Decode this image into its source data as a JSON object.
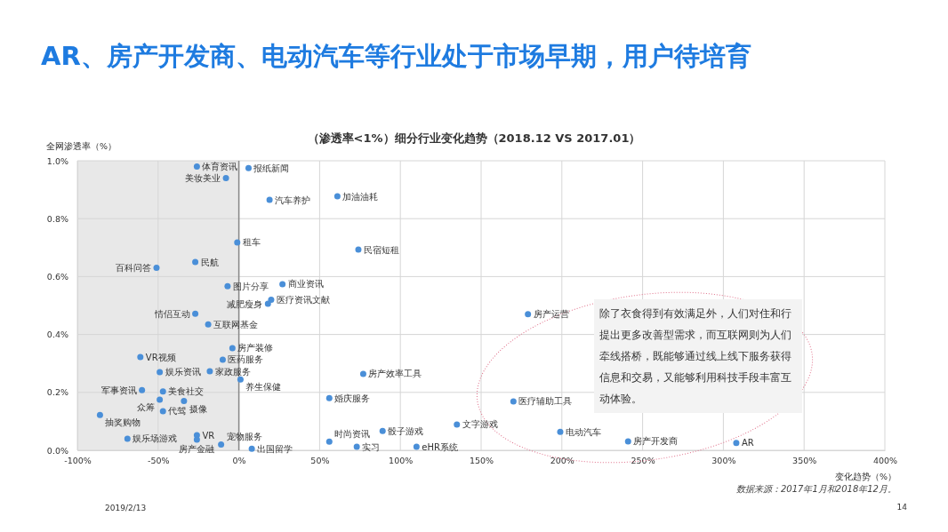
{
  "chart_data": {
    "type": "scatter",
    "title": "AR、房产开发商、电动汽车等行业处于市场早期，用户待培育",
    "subtitle": "（渗透率<1%）细分行业变化趋势（2018.12 VS 2017.01）",
    "xlabel": "变化趋势（%）",
    "ylabel": "全网渗透率（%）",
    "xlim": [
      -100,
      400
    ],
    "xticks": [
      {
        "value": -100,
        "label": "-100%"
      },
      {
        "value": -50,
        "label": "-50%"
      },
      {
        "value": 0,
        "label": "0%"
      },
      {
        "value": 50,
        "label": "50%"
      },
      {
        "value": 100,
        "label": "100%"
      },
      {
        "value": 150,
        "label": "150%"
      },
      {
        "value": 200,
        "label": "200%"
      },
      {
        "value": 250,
        "label": "250%"
      },
      {
        "value": 300,
        "label": "300%"
      },
      {
        "value": 350,
        "label": "350%"
      },
      {
        "value": 400,
        "label": "400%"
      }
    ],
    "ylim": [
      0,
      1
    ],
    "yticks": [
      {
        "value": 0,
        "label": "0.0%"
      },
      {
        "value": 0.2,
        "label": "0.2%"
      },
      {
        "value": 0.4,
        "label": "0.4%"
      },
      {
        "value": 0.6,
        "label": "0.6%"
      },
      {
        "value": 0.8,
        "label": "0.8%"
      },
      {
        "value": 1,
        "label": "1.0%"
      }
    ],
    "grid": true,
    "marker": "circle",
    "bands": [
      {
        "axis": "x",
        "from": -100,
        "to": 0,
        "color": "#e8e8e8"
      }
    ],
    "series": [
      {
        "color": "#4a8fd8",
        "x": [
          -26,
          6,
          -8,
          19,
          61,
          -1,
          74,
          -27,
          -51,
          -7,
          27,
          20,
          18,
          -27,
          -19,
          179,
          -4,
          -61,
          -10,
          -49,
          -18,
          1,
          77,
          -60,
          -47,
          -34,
          -49,
          -47,
          -86,
          -69,
          -26,
          -26,
          -11,
          8,
          56,
          56,
          73,
          89,
          110,
          135,
          170,
          199,
          241,
          308
        ],
        "values": [
          0.98,
          0.975,
          0.94,
          0.865,
          0.877,
          0.718,
          0.693,
          0.65,
          0.63,
          0.567,
          0.574,
          0.52,
          0.506,
          0.472,
          0.435,
          0.47,
          0.353,
          0.322,
          0.313,
          0.27,
          0.273,
          0.245,
          0.264,
          0.208,
          0.203,
          0.17,
          0.175,
          0.135,
          0.122,
          0.04,
          0.052,
          0.037,
          0.02,
          0.005,
          0.18,
          0.03,
          0.012,
          0.067,
          0.012,
          0.089,
          0.169,
          0.064,
          0.031,
          0.025
        ]
      }
    ],
    "annotations": [
      "除了衣食得到有效满足外，人们对住和行提出更多改善型需求，而互联网则为人们牵线搭桥，既能够通过线上线下服务获得信息和交易，又能够利用科技手段丰富互动体验。",
      "数据来源：2017年1月和2018年12月。",
      "2019/2/13",
      "14",
      {
        "text": "体育资讯",
        "x": -26,
        "y": 0.98
      },
      {
        "text": "报纸新闻",
        "x": 6,
        "y": 0.975
      },
      {
        "text": "美妆美业",
        "x": -8,
        "y": 0.94
      },
      {
        "text": "汽车养护",
        "x": 19,
        "y": 0.865
      },
      {
        "text": "加油油耗",
        "x": 61,
        "y": 0.877
      },
      {
        "text": "租车",
        "x": -1,
        "y": 0.718
      },
      {
        "text": "民宿短租",
        "x": 74,
        "y": 0.693
      },
      {
        "text": "民航",
        "x": -27,
        "y": 0.65
      },
      {
        "text": "百科问答",
        "x": -51,
        "y": 0.63
      },
      {
        "text": "图片分享",
        "x": -7,
        "y": 0.567
      },
      {
        "text": "商业资讯",
        "x": 27,
        "y": 0.574
      },
      {
        "text": "医疗资讯文献",
        "x": 20,
        "y": 0.52
      },
      {
        "text": "减肥瘦身",
        "x": 18,
        "y": 0.506
      },
      {
        "text": "情侣互动",
        "x": -27,
        "y": 0.472
      },
      {
        "text": "互联网基金",
        "x": -19,
        "y": 0.435
      },
      {
        "text": "房产运营",
        "x": 179,
        "y": 0.47
      },
      {
        "text": "房产装修",
        "x": -4,
        "y": 0.353
      },
      {
        "text": "VR视频",
        "x": -61,
        "y": 0.322
      },
      {
        "text": "医药服务",
        "x": -10,
        "y": 0.313
      },
      {
        "text": "娱乐资讯",
        "x": -49,
        "y": 0.27
      },
      {
        "text": "家政服务",
        "x": -18,
        "y": 0.273
      },
      {
        "text": "养生保健",
        "x": 1,
        "y": 0.245
      },
      {
        "text": "房产效率工具",
        "x": 77,
        "y": 0.264
      },
      {
        "text": "军事资讯",
        "x": -60,
        "y": 0.208
      },
      {
        "text": "美食社交",
        "x": -47,
        "y": 0.203
      },
      {
        "text": "摄像",
        "x": -34,
        "y": 0.17
      },
      {
        "text": "众筹",
        "x": -49,
        "y": 0.175
      },
      {
        "text": "代驾",
        "x": -47,
        "y": 0.135
      },
      {
        "text": "抽奖购物",
        "x": -86,
        "y": 0.122
      },
      {
        "text": "娱乐场游戏",
        "x": -69,
        "y": 0.04
      },
      {
        "text": "VR",
        "x": -26,
        "y": 0.052
      },
      {
        "text": "房产金融",
        "x": -26,
        "y": 0.037
      },
      {
        "text": "宠物服务",
        "x": -11,
        "y": 0.02
      },
      {
        "text": "出国留学",
        "x": 8,
        "y": 0.005
      },
      {
        "text": "婚庆服务",
        "x": 56,
        "y": 0.18
      },
      {
        "text": "时尚资讯",
        "x": 56,
        "y": 0.03
      },
      {
        "text": "实习",
        "x": 73,
        "y": 0.012
      },
      {
        "text": "骰子游戏",
        "x": 89,
        "y": 0.067
      },
      {
        "text": "eHR系统",
        "x": 110,
        "y": 0.012
      },
      {
        "text": "文字游戏",
        "x": 135,
        "y": 0.089
      },
      {
        "text": "医疗辅助工具",
        "x": 170,
        "y": 0.169
      },
      {
        "text": "电动汽车",
        "x": 199,
        "y": 0.064
      },
      {
        "text": "房产开发商",
        "x": 241,
        "y": 0.031
      },
      {
        "text": "AR",
        "x": 308,
        "y": 0.025
      }
    ]
  }
}
